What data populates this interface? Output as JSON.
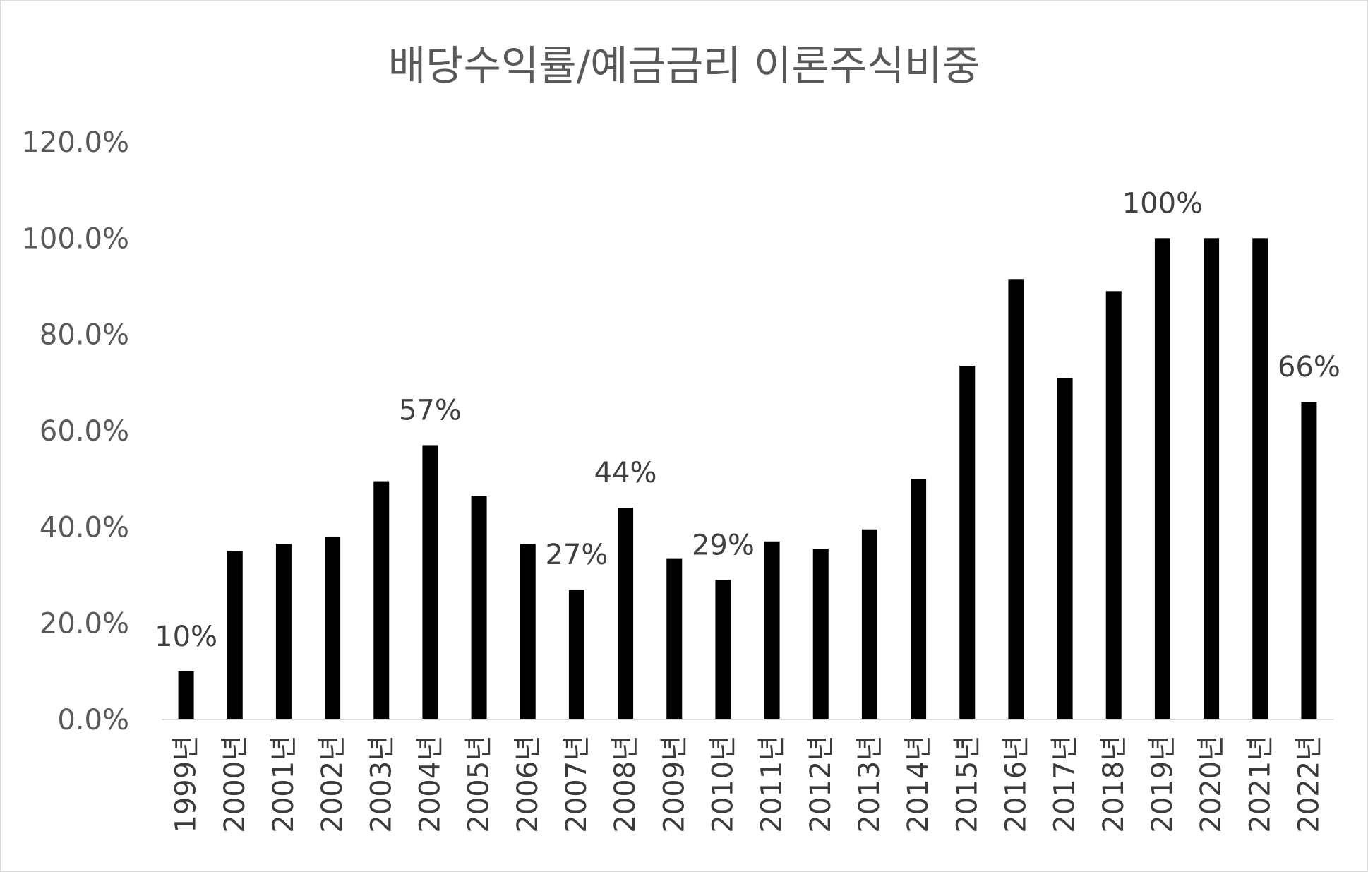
{
  "chart_data": {
    "type": "bar",
    "title": "배당수익률/예금금리 이론주식비중",
    "xlabel": "",
    "ylabel": "",
    "ylim": [
      0,
      120
    ],
    "yticks": [
      "0.0%",
      "20.0%",
      "40.0%",
      "60.0%",
      "80.0%",
      "100.0%",
      "120.0%"
    ],
    "categories": [
      "1999년",
      "2000년",
      "2001년",
      "2002년",
      "2003년",
      "2004년",
      "2005년",
      "2006년",
      "2007년",
      "2008년",
      "2009년",
      "2010년",
      "2011년",
      "2012년",
      "2013년",
      "2014년",
      "2015년",
      "2016년",
      "2017년",
      "2018년",
      "2019년",
      "2020년",
      "2021년",
      "2022년"
    ],
    "values": [
      10,
      35,
      36.5,
      38,
      49.5,
      57,
      46.5,
      36.5,
      27,
      44,
      33.5,
      29,
      37,
      35.5,
      39.5,
      50,
      73.5,
      91.5,
      71,
      89,
      100,
      100,
      100,
      66
    ],
    "data_labels": [
      {
        "category": "1999년",
        "text": "10%"
      },
      {
        "category": "2004년",
        "text": "57%"
      },
      {
        "category": "2007년",
        "text": "27%"
      },
      {
        "category": "2008년",
        "text": "44%"
      },
      {
        "category": "2010년",
        "text": "29%"
      },
      {
        "category": "2019년",
        "text": "100%"
      },
      {
        "category": "2022년",
        "text": "66%"
      }
    ],
    "bar_color": "#000000",
    "grid": false,
    "legend": "none"
  }
}
